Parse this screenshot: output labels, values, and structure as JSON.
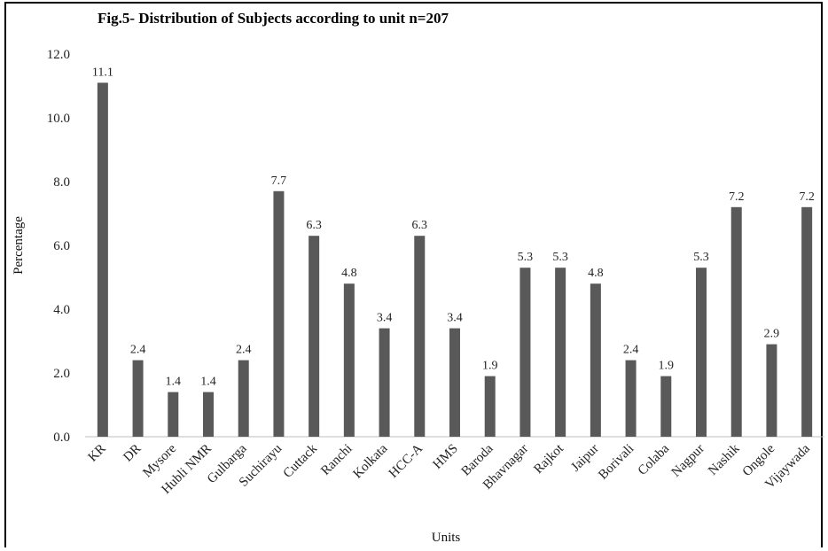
{
  "chart_data": {
    "type": "bar",
    "title": "Fig.5- Distribution of Subjects according to unit n=207",
    "xlabel": "Units",
    "ylabel": "Percentage",
    "ylim": [
      0,
      12
    ],
    "yticks": [
      "0.0",
      "2.0",
      "4.0",
      "6.0",
      "8.0",
      "10.0",
      "12.0"
    ],
    "grid": false,
    "bar_color": "#595959",
    "categories": [
      "KR",
      "DR",
      "Mysore",
      "Hubli NMR",
      "Gulbarga",
      "Suchirayu",
      "Cuttack",
      "Ranchi",
      "Kolkata",
      "HCC-A",
      "HMS",
      "Baroda",
      "Bhavnagar",
      "Rajkot",
      "Jaipur",
      "Borivali",
      "Colaba",
      "Nagpur",
      "Nashik",
      "Ongole",
      "Vijaywada"
    ],
    "values": [
      11.1,
      2.4,
      1.4,
      1.4,
      2.4,
      7.7,
      6.3,
      4.8,
      3.4,
      6.3,
      3.4,
      1.9,
      5.3,
      5.3,
      4.8,
      2.4,
      1.9,
      5.3,
      7.2,
      2.9,
      7.2
    ],
    "data_labels": [
      "11.1",
      "2.4",
      "1.4",
      "1.4",
      "2.4",
      "7.7",
      "6.3",
      "4.8",
      "3.4",
      "6.3",
      "3.4",
      "1.9",
      "5.3",
      "5.3",
      "4.8",
      "2.4",
      "1.9",
      "5.3",
      "7.2",
      "2.9",
      "7.2"
    ]
  }
}
